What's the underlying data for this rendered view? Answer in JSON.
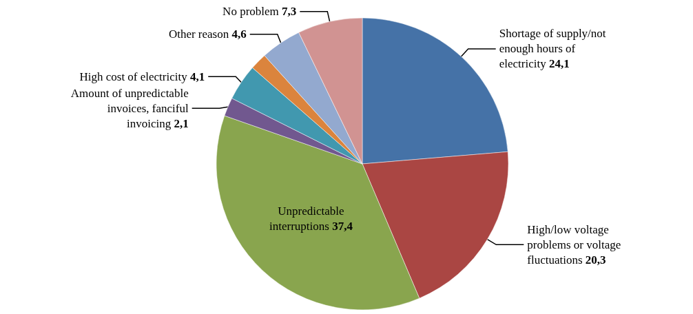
{
  "chart_data": {
    "type": "pie",
    "categories": [
      "Shortage of supply/not enough hours of electricity",
      "High/low voltage problems or voltage fluctuations",
      "Unpredictable interruptions",
      "Amount of unpredictable invoices, fanciful invoicing",
      "High cost of electricity",
      null,
      "Other reason",
      "No problem"
    ],
    "values": [
      24.1,
      20.3,
      37.4,
      2.1,
      4.1,
      1.9,
      4.6,
      7.3
    ],
    "value_labels": [
      "24,1",
      "20,3",
      "37,4",
      "2,1",
      "4,1",
      null,
      "4,6",
      "7,3"
    ],
    "colors": [
      "#4572a7",
      "#aa4643",
      "#89a54e",
      "#71588f",
      "#4198af",
      "#db843d",
      "#93a9cf",
      "#d19392"
    ],
    "legend": false
  }
}
